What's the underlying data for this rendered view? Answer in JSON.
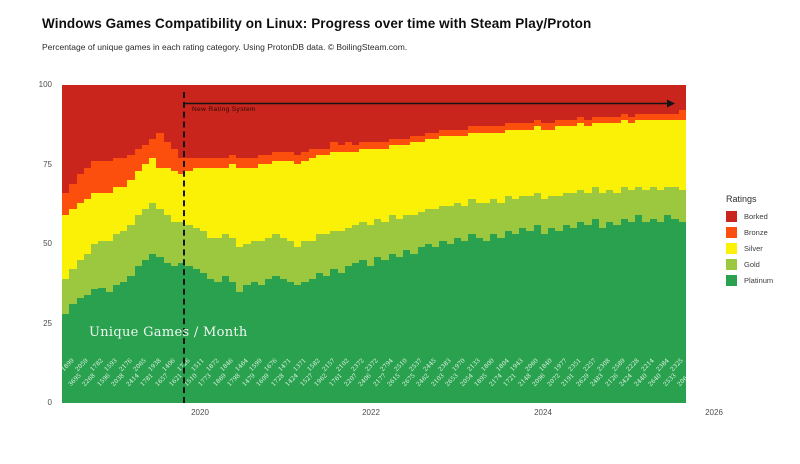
{
  "header": {
    "title": "Windows Games Compatibility on Linux: Progress over time with Steam Play/Proton",
    "subtitle": "Percentage of unique games in each rating category. Using ProtonDB data. © BoilingSteam.com."
  },
  "chart_data": {
    "type": "area",
    "subtype": "stacked-step-area-monthly",
    "title": "Windows Games Compatibility on Linux: Progress over time with Steam Play/Proton",
    "subtitle": "Percentage of unique games in each rating category. Using ProtonDB data. © BoilingSteam.com.",
    "ylabel": "",
    "xlabel": "",
    "ylim": [
      0,
      100
    ],
    "grid": false,
    "y_axis": {
      "ticks": [
        "100",
        "75",
        "50",
        "25",
        "0"
      ]
    },
    "x_axis": {
      "ticks": [
        "2020",
        "2022",
        "2024",
        "2026"
      ]
    },
    "annotation": {
      "label": "New Rating System",
      "style": "dashed-vertical-line-with-right-arrow",
      "position_x_fraction": 0.194
    },
    "inner_label": "Unique Games / Month",
    "legend": {
      "title": "Ratings",
      "position": "right",
      "items": [
        {
          "label": "Borked",
          "color": "#c9251c"
        },
        {
          "label": "Bronze",
          "color": "#fc4e0d"
        },
        {
          "label": "Silver",
          "color": "#fbf106"
        },
        {
          "label": "Gold",
          "color": "#9cc83f"
        },
        {
          "label": "Platinum",
          "color": "#29a14e"
        }
      ]
    },
    "bar_count_labels": [
      "1899",
      "3695",
      "2059",
      "2268",
      "1782",
      "1596",
      "1593",
      "2038",
      "2176",
      "2414",
      "2065",
      "1781",
      "1938",
      "1657",
      "1406",
      "1621",
      "1726",
      "1510",
      "1511",
      "1773",
      "1872",
      "1869",
      "1846",
      "1798",
      "1464",
      "1479",
      "1599",
      "1609",
      "1676",
      "1728",
      "1471",
      "1424",
      "1371",
      "1527",
      "1582",
      "1962",
      "2157",
      "1761",
      "2102",
      "2207",
      "2372",
      "2406",
      "2372",
      "2177",
      "2794",
      "2615",
      "2510",
      "2675",
      "2537",
      "2462",
      "2445",
      "2103",
      "2383",
      "2653",
      "1970",
      "2054",
      "2133",
      "1895",
      "1800",
      "2174",
      "1804",
      "1721",
      "1943",
      "2148",
      "2060",
      "2096",
      "1840",
      "2072",
      "1977",
      "2191",
      "2351",
      "2629",
      "2257",
      "2483",
      "2308",
      "2126",
      "2589",
      "2424",
      "2228",
      "2440",
      "2214",
      "2640",
      "2384",
      "2533",
      "2325",
      "206"
    ],
    "series_note": "Percent of games per rating per month, stacked bottom-to-top Platinum/Gold/Silver/Bronze/Borked; values estimated from pixels, each month sums to 100.",
    "series": [
      {
        "name": "Platinum",
        "color": "#29a14e",
        "values": [
          28,
          31,
          33,
          34,
          36,
          36,
          35,
          37,
          38,
          40,
          43,
          45,
          47,
          46,
          44,
          43,
          44,
          43,
          42,
          41,
          39,
          38,
          40,
          38,
          35,
          37,
          38,
          37,
          39,
          40,
          39,
          38,
          37,
          38,
          39,
          41,
          40,
          42,
          41,
          43,
          44,
          45,
          43,
          46,
          45,
          47,
          46,
          48,
          47,
          49,
          50,
          49,
          51,
          50,
          52,
          51,
          53,
          52,
          51,
          53,
          52,
          54,
          53,
          55,
          54,
          56,
          53,
          55,
          54,
          56,
          55,
          57,
          56,
          58,
          55,
          57,
          56,
          58,
          57,
          59,
          57,
          58,
          57,
          59,
          58,
          57
        ]
      },
      {
        "name": "Gold",
        "color": "#9cc83f",
        "values": [
          11,
          11,
          12,
          13,
          14,
          15,
          16,
          16,
          16,
          16,
          16,
          16,
          16,
          15,
          15,
          14,
          13,
          13,
          13,
          13,
          13,
          14,
          13,
          14,
          14,
          13,
          13,
          14,
          13,
          13,
          13,
          13,
          12,
          13,
          12,
          12,
          13,
          12,
          13,
          12,
          12,
          12,
          13,
          12,
          12,
          12,
          12,
          11,
          12,
          11,
          11,
          12,
          11,
          12,
          11,
          11,
          11,
          11,
          12,
          11,
          11,
          11,
          11,
          10,
          11,
          10,
          11,
          10,
          11,
          10,
          11,
          10,
          10,
          10,
          11,
          10,
          10,
          10,
          10,
          9,
          10,
          10,
          10,
          9,
          10,
          10
        ]
      },
      {
        "name": "Silver",
        "color": "#fbf106",
        "values": [
          20,
          19,
          18,
          17,
          16,
          15,
          15,
          15,
          14,
          14,
          14,
          14,
          14,
          13,
          15,
          16,
          15,
          17,
          19,
          20,
          22,
          22,
          21,
          23,
          25,
          24,
          23,
          24,
          23,
          23,
          24,
          25,
          26,
          25,
          26,
          25,
          25,
          25,
          25,
          24,
          23,
          23,
          24,
          22,
          23,
          22,
          23,
          22,
          23,
          22,
          22,
          22,
          22,
          22,
          21,
          22,
          21,
          22,
          22,
          21,
          22,
          21,
          22,
          21,
          21,
          21,
          22,
          21,
          22,
          21,
          21,
          21,
          21,
          20,
          22,
          21,
          22,
          21,
          21,
          21,
          22,
          21,
          22,
          21,
          21,
          22
        ]
      },
      {
        "name": "Bronze",
        "color": "#fc4e0d",
        "values": [
          7,
          8,
          9,
          10,
          10,
          10,
          10,
          9,
          9,
          8,
          7,
          6,
          6,
          11,
          8,
          7,
          5,
          4,
          3,
          3,
          3,
          3,
          3,
          3,
          3,
          3,
          3,
          3,
          3,
          3,
          3,
          3,
          3,
          3,
          3,
          2,
          2,
          3,
          2,
          3,
          2,
          2,
          2,
          2,
          2,
          2,
          2,
          2,
          2,
          2,
          2,
          2,
          2,
          2,
          2,
          2,
          2,
          2,
          2,
          2,
          2,
          2,
          2,
          2,
          2,
          2,
          2,
          2,
          2,
          2,
          2,
          2,
          2,
          2,
          2,
          2,
          2,
          2,
          2,
          2,
          2,
          2,
          2,
          2,
          2,
          3
        ]
      },
      {
        "name": "Borked",
        "color": "#c9251c",
        "values": [
          34,
          31,
          28,
          26,
          24,
          24,
          24,
          23,
          23,
          22,
          20,
          19,
          17,
          15,
          18,
          20,
          23,
          23,
          23,
          23,
          23,
          23,
          23,
          22,
          23,
          23,
          23,
          22,
          22,
          21,
          21,
          21,
          22,
          21,
          20,
          20,
          20,
          18,
          19,
          18,
          19,
          18,
          18,
          18,
          18,
          17,
          17,
          17,
          16,
          16,
          15,
          15,
          14,
          14,
          14,
          14,
          13,
          13,
          13,
          13,
          13,
          12,
          12,
          12,
          12,
          11,
          12,
          12,
          11,
          11,
          11,
          10,
          11,
          10,
          10,
          10,
          10,
          9,
          10,
          9,
          9,
          9,
          9,
          9,
          9,
          8
        ]
      }
    ]
  }
}
